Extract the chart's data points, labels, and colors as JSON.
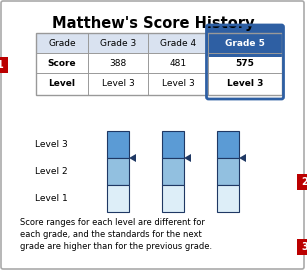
{
  "title": "Matthew's Score History",
  "table_headers": [
    "Grade",
    "Grade 3",
    "Grade 4",
    "Grade 5"
  ],
  "table_rows": [
    [
      "Score",
      "388",
      "481",
      "575"
    ],
    [
      "Level",
      "Level 3",
      "Level 3",
      "Level 3"
    ]
  ],
  "gauge_colors_top": "#5b9bd5",
  "gauge_colors_mid": "#92c0e0",
  "gauge_colors_bot": "#ddeef8",
  "gauge_border": "#1f3864",
  "arrow_color": "#1f3864",
  "footer_text": "Score ranges for each level are different for\neach grade, and the standards for the next\ngrade are higher than for the previous grade.",
  "callout_color": "#bb0000",
  "bg_color": "#ffffff",
  "outer_border": "#aaaaaa",
  "table_header_bg": "#d9e2f0",
  "grade5_header_bg": "#2e5fa3",
  "grade5_header_fg": "#ffffff"
}
